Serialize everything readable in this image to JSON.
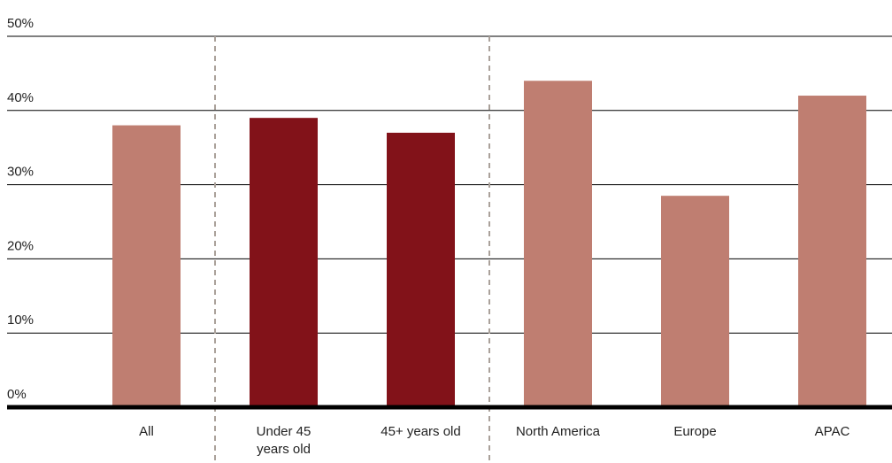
{
  "chart_data": {
    "type": "bar",
    "title": "",
    "xlabel": "",
    "ylabel": "",
    "ylim": [
      0,
      50
    ],
    "y_ticks": [
      0,
      10,
      20,
      30,
      40,
      50
    ],
    "y_tick_format": "{v}%",
    "grid": true,
    "legend": "none",
    "group_separators_after": [
      0,
      2
    ],
    "categories": [
      {
        "label_lines": [
          "All"
        ],
        "value": 38,
        "color": "#bf7e71"
      },
      {
        "label_lines": [
          "Under 45",
          "years old"
        ],
        "value": 39,
        "color": "#821219"
      },
      {
        "label_lines": [
          "45+ years old"
        ],
        "value": 37,
        "color": "#821219"
      },
      {
        "label_lines": [
          "North America"
        ],
        "value": 44,
        "color": "#bf7e71"
      },
      {
        "label_lines": [
          "Europe"
        ],
        "value": 28.5,
        "color": "#bf7e71"
      },
      {
        "label_lines": [
          "APAC"
        ],
        "value": 42,
        "color": "#bf7e71"
      }
    ],
    "colors": {
      "grid": "#000000",
      "baseline": "#000000",
      "separator": "#aaa19a"
    }
  }
}
